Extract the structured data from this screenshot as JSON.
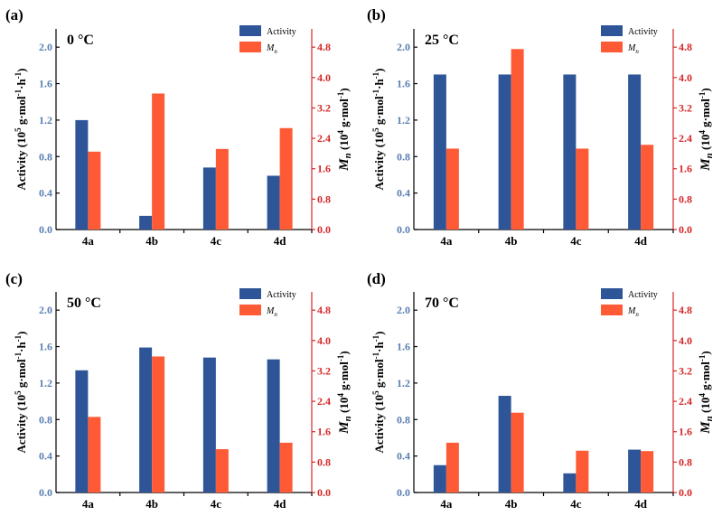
{
  "colors": {
    "activity": "#2e5597",
    "mn": "#ff5a36",
    "right_axis": "#d62728"
  },
  "legend": {
    "activity": "Activity",
    "mn": "M",
    "mn_sub": "n"
  },
  "axis_labels": {
    "left_main": "Activity (10",
    "left_sup1": "5",
    "left_mid": " g·mol",
    "left_sup2": "-1",
    "left_mid2": "·h",
    "left_sup3": "-1",
    "left_end": ")",
    "right_M": "M",
    "right_n": "n",
    "right_rest": " (10",
    "right_sup1": "4",
    "right_mid": " g·mol",
    "right_sup2": "-1",
    "right_end": ")"
  },
  "chart_data": [
    {
      "type": "bar",
      "label": "(a)",
      "temperature": "0 °C",
      "categories": [
        "4a",
        "4b",
        "4c",
        "4d"
      ],
      "series": [
        {
          "name": "Activity",
          "axis": "left",
          "values": [
            1.2,
            0.15,
            0.68,
            0.59
          ]
        },
        {
          "name": "Mn",
          "axis": "right",
          "values": [
            2.05,
            3.58,
            2.12,
            2.67
          ]
        }
      ],
      "ylim_left": [
        0,
        2.2
      ],
      "ylim_right": [
        0,
        5.28
      ],
      "yticks_left": [
        "0.0",
        "0.4",
        "0.8",
        "1.2",
        "1.6",
        "2.0"
      ],
      "yticks_right": [
        "0.0",
        "0.8",
        "1.6",
        "2.4",
        "3.2",
        "4.0",
        "4.8"
      ]
    },
    {
      "type": "bar",
      "label": "(b)",
      "temperature": "25 °C",
      "categories": [
        "4a",
        "4b",
        "4c",
        "4d"
      ],
      "series": [
        {
          "name": "Activity",
          "axis": "left",
          "values": [
            1.7,
            1.7,
            1.7,
            1.7
          ]
        },
        {
          "name": "Mn",
          "axis": "right",
          "values": [
            2.13,
            4.75,
            2.13,
            2.23
          ]
        }
      ],
      "ylim_left": [
        0,
        2.2
      ],
      "ylim_right": [
        0,
        5.28
      ],
      "yticks_left": [
        "0.0",
        "0.4",
        "0.8",
        "1.2",
        "1.6",
        "2.0"
      ],
      "yticks_right": [
        "0.0",
        "0.8",
        "1.6",
        "2.4",
        "3.2",
        "4.0",
        "4.8"
      ]
    },
    {
      "type": "bar",
      "label": "(c)",
      "temperature": "50 °C",
      "categories": [
        "4a",
        "4b",
        "4c",
        "4d"
      ],
      "series": [
        {
          "name": "Activity",
          "axis": "left",
          "values": [
            1.34,
            1.59,
            1.48,
            1.46
          ]
        },
        {
          "name": "Mn",
          "axis": "right",
          "values": [
            1.99,
            3.58,
            1.14,
            1.31
          ]
        }
      ],
      "ylim_left": [
        0,
        2.2
      ],
      "ylim_right": [
        0,
        5.28
      ],
      "yticks_left": [
        "0.0",
        "0.4",
        "0.8",
        "1.2",
        "1.6",
        "2.0"
      ],
      "yticks_right": [
        "0.0",
        "0.8",
        "1.6",
        "2.4",
        "3.2",
        "4.0",
        "4.8"
      ]
    },
    {
      "type": "bar",
      "label": "(d)",
      "temperature": "70 °C",
      "categories": [
        "4a",
        "4b",
        "4c",
        "4d"
      ],
      "series": [
        {
          "name": "Activity",
          "axis": "left",
          "values": [
            0.3,
            1.06,
            0.21,
            0.47
          ]
        },
        {
          "name": "Mn",
          "axis": "right",
          "values": [
            1.31,
            2.1,
            1.1,
            1.09
          ]
        }
      ],
      "ylim_left": [
        0,
        2.2
      ],
      "ylim_right": [
        0,
        5.28
      ],
      "yticks_left": [
        "0.0",
        "0.4",
        "0.8",
        "1.2",
        "1.6",
        "2.0"
      ],
      "yticks_right": [
        "0.0",
        "0.8",
        "1.6",
        "2.4",
        "3.2",
        "4.0",
        "4.8"
      ]
    }
  ]
}
